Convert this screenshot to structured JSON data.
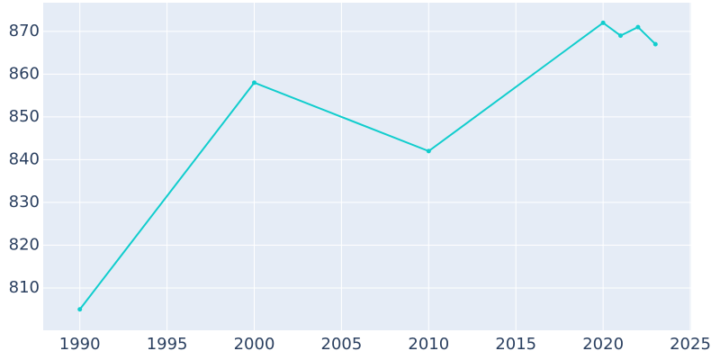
{
  "chart_data": {
    "type": "line",
    "x": [
      1990,
      2000,
      2010,
      2020,
      2021,
      2022,
      2023
    ],
    "series": [
      {
        "color": "#11cdcd",
        "values": [
          805,
          858,
          842,
          872,
          869,
          871,
          867
        ]
      }
    ],
    "xlim": [
      1987.9,
      2025.05
    ],
    "ylim": [
      800.1,
      876.7
    ],
    "xticks": [
      1990,
      1995,
      2000,
      2005,
      2010,
      2015,
      2020,
      2025
    ],
    "yticks": [
      810,
      820,
      830,
      840,
      850,
      860,
      870
    ],
    "grid": true,
    "markers": true
  }
}
